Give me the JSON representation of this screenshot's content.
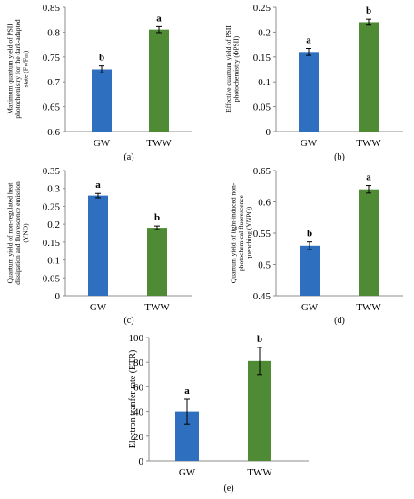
{
  "colors": {
    "GW": "#2f6fbf",
    "TWW": "#4f8a35",
    "axis": "#8c8c8c",
    "errorbar": "#000000"
  },
  "chart_data": [
    {
      "type": "bar",
      "panel": "(a)",
      "ylabel_lines": [
        "Maximum quantum yield of PSII",
        "photochemistry for the dark-adapted",
        "state (Fv/Fm)"
      ],
      "categories": [
        "GW",
        "TWW"
      ],
      "values": [
        0.725,
        0.805
      ],
      "errors": [
        0.007,
        0.006
      ],
      "letters": [
        "b",
        "a"
      ],
      "ylim": [
        0.6,
        0.85
      ],
      "yticks": [
        "0.6",
        "0.65",
        "0.7",
        "0.75",
        "0.8",
        "0.85"
      ],
      "grid": false
    },
    {
      "type": "bar",
      "panel": "(b)",
      "ylabel_lines": [
        "Effective quantum yield of PSII",
        "photochemistry (ΦPSII)"
      ],
      "categories": [
        "GW",
        "TWW"
      ],
      "values": [
        0.16,
        0.22
      ],
      "errors": [
        0.007,
        0.006
      ],
      "letters": [
        "a",
        "b"
      ],
      "ylim": [
        0,
        0.25
      ],
      "yticks": [
        "0",
        "0.05",
        "0.1",
        "0.15",
        "0.2",
        "0.25"
      ],
      "grid": false
    },
    {
      "type": "bar",
      "panel": "(c)",
      "ylabel_lines": [
        "Quantum yield of non-regulated heat",
        "dissipation and fluorescence emission",
        "(YNO)"
      ],
      "categories": [
        "GW",
        "TWW"
      ],
      "values": [
        0.28,
        0.19
      ],
      "errors": [
        0.006,
        0.005
      ],
      "letters": [
        "a",
        "b"
      ],
      "ylim": [
        0,
        0.35
      ],
      "yticks": [
        "0",
        "0.05",
        "0.1",
        "0.15",
        "0.2",
        "0.25",
        "0.3",
        "0.35"
      ],
      "grid": false
    },
    {
      "type": "bar",
      "panel": "(d)",
      "ylabel_lines": [
        "Quantum yield of light-induced non-",
        "photochemical fluorescence",
        "quenching (YNPQ)"
      ],
      "categories": [
        "GW",
        "TWW"
      ],
      "values": [
        0.53,
        0.62
      ],
      "errors": [
        0.006,
        0.006
      ],
      "letters": [
        "b",
        "a"
      ],
      "ylim": [
        0.45,
        0.65
      ],
      "yticks": [
        "0.45",
        "0.5",
        "0.55",
        "0.6",
        "0.65"
      ],
      "grid": false
    },
    {
      "type": "bar",
      "panel": "(e)",
      "ylabel_lines": [
        "Electron tranfer rate (ETR)"
      ],
      "categories": [
        "GW",
        "TWW"
      ],
      "values": [
        40,
        81
      ],
      "errors": [
        10,
        11
      ],
      "letters": [
        "a",
        "b"
      ],
      "ylim": [
        0,
        100
      ],
      "yticks": [
        "0",
        "20",
        "40",
        "60",
        "80",
        "100"
      ],
      "grid": false
    }
  ]
}
